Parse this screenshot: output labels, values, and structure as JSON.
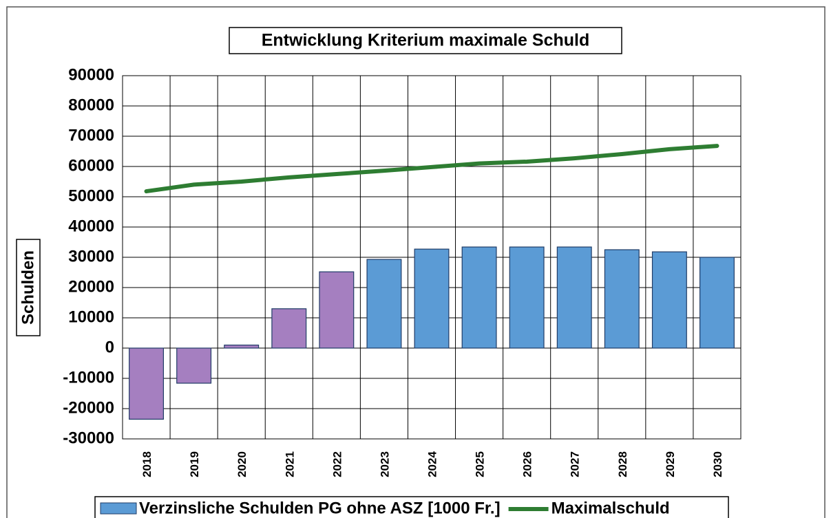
{
  "chart_data": {
    "type": "bar",
    "title": "Entwicklung Kriterium maximale Schuld",
    "y_label": "Schulden",
    "categories": [
      "2018",
      "2019",
      "2020",
      "2021",
      "2022",
      "2023",
      "2024",
      "2025",
      "2026",
      "2027",
      "2028",
      "2029",
      "2030"
    ],
    "series": [
      {
        "name": "Verzinsliche Schulden PG ohne ASZ [1000 Fr.]",
        "type": "bar",
        "color": "#5b9bd5",
        "colors": [
          "#a57fc0",
          "#a57fc0",
          "#a57fc0",
          "#a57fc0",
          "#a57fc0",
          "#5b9bd5",
          "#5b9bd5",
          "#5b9bd5",
          "#5b9bd5",
          "#5b9bd5",
          "#5b9bd5",
          "#5b9bd5",
          "#5b9bd5"
        ],
        "values": [
          -23500,
          -11600,
          1000,
          13000,
          25200,
          29300,
          32700,
          33400,
          33400,
          33400,
          32500,
          31800,
          30000
        ]
      },
      {
        "name": "Maximalschuld",
        "type": "line",
        "color": "#2e7d32",
        "values": [
          51800,
          54000,
          55000,
          56400,
          57500,
          58600,
          59800,
          61000,
          61600,
          62700,
          64100,
          65700,
          66800
        ]
      }
    ],
    "ylim": [
      -30000,
      90000
    ],
    "yticks": [
      -30000,
      -20000,
      -10000,
      0,
      10000,
      20000,
      30000,
      40000,
      50000,
      60000,
      70000,
      80000,
      90000
    ],
    "grid": true
  }
}
